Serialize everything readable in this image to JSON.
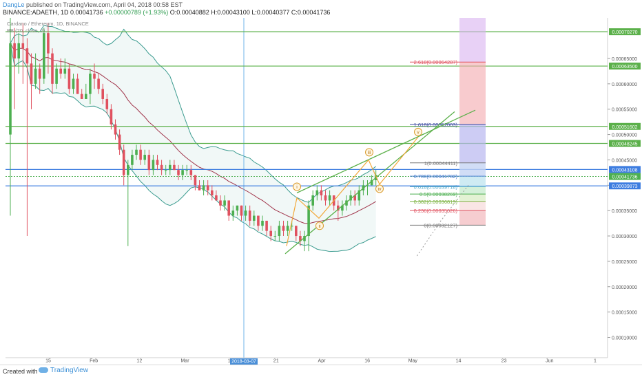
{
  "header": {
    "user": "DangLe",
    "published": "published on TradingView.com, April 04, 2018 00:58 EST",
    "symbol_line": "BINANCE:ADAETH, 1D",
    "last": "0.00041736",
    "change": "+0.00000789 (+1.93%)",
    "ohlc": "O:0.00040882 H:0.00043100 L:0.00040377 C:0.00041736",
    "legend1": "Cardano / Ethereum, 1D, BINANCE",
    "legend2": "BB (20, close, 2)"
  },
  "footer": {
    "created_with": "Created with",
    "brand": "TradingView"
  },
  "colors": {
    "up": "#4caf50",
    "down": "#e0515f",
    "bb_band": "#3a9b8f",
    "bb_basis": "#a0344a",
    "green_line": "#5bb04a",
    "blue_line": "#3d7de0"
  },
  "chart_data": {
    "type": "candlestick",
    "ylim": [
      6e-05,
      0.00073
    ],
    "y_ticks": [
      "0.00065000",
      "0.00060000",
      "0.00055000",
      "0.00050000",
      "0.00045000",
      "0.00040000",
      "0.00035000",
      "0.00030000",
      "0.00025000",
      "0.00020000",
      "0.00015000",
      "0.00010000"
    ],
    "x_ticks": [
      "15",
      "Feb",
      "12",
      "Mar",
      "12",
      "21",
      "Apr",
      "16",
      "May",
      "14",
      "23",
      "Jun",
      "1"
    ],
    "crosshair_date": "2018-03-07",
    "price_tags": [
      {
        "value": "0.00070270",
        "color": "#5bb04a",
        "y": 0.0007027
      },
      {
        "value": "0.00063500",
        "color": "#5bb04a",
        "y": 0.000635
      },
      {
        "value": "0.00051602",
        "color": "#5bb04a",
        "y": 0.00051602
      },
      {
        "value": "0.00048245",
        "color": "#5bb04a",
        "y": 0.00048245
      },
      {
        "value": "0.00043108",
        "color": "#3d7de0",
        "y": 0.00043108
      },
      {
        "value": "0.00041736",
        "color": "#4caf50",
        "y": 0.00041736
      },
      {
        "value": "0.00039873",
        "color": "#3d7de0",
        "y": 0.00039873
      }
    ],
    "fib_levels": [
      {
        "label": "2.618(0.00064287)",
        "y": 0.00064287,
        "color": "#e0515f"
      },
      {
        "label": "1.618(0.00052003)",
        "y": 0.00052003,
        "color": "#3b4aa0"
      },
      {
        "label": "1(0.00044411)",
        "y": 0.00044411,
        "color": "#777777"
      },
      {
        "label": "0.786(0.00041782)",
        "y": 0.00041782,
        "color": "#4a7fd0"
      },
      {
        "label": "0.618(0.00039718)",
        "y": 0.00039718,
        "color": "#4fa6c8"
      },
      {
        "label": "0.5(0.00038269)",
        "y": 0.00038269,
        "color": "#4caf50"
      },
      {
        "label": "0.382(0.00036819)",
        "y": 0.00036819,
        "color": "#7cb342"
      },
      {
        "label": "0.236(0.00035026)",
        "y": 0.00035026,
        "color": "#e0515f"
      },
      {
        "label": "0(0.00032127)",
        "y": 0.00032127,
        "color": "#777777"
      }
    ],
    "wave_labels": [
      "i",
      "ii",
      "iii",
      "iv",
      "v"
    ],
    "candles": [
      [
        0.0005,
        0.00073,
        0.00034,
        0.00068
      ],
      [
        0.00068,
        0.00071,
        0.00055,
        0.00065
      ],
      [
        0.00065,
        0.0007,
        0.00062,
        0.00068
      ],
      [
        0.00068,
        0.00072,
        0.0006,
        0.00067
      ],
      [
        0.00067,
        0.00069,
        0.0003,
        0.00064
      ],
      [
        0.00064,
        0.00066,
        0.00055,
        0.0006
      ],
      [
        0.0006,
        0.00066,
        0.00059,
        0.00063
      ],
      [
        0.00063,
        0.00064,
        0.00058,
        0.00061
      ],
      [
        0.00061,
        0.00071,
        0.0006,
        0.0007
      ],
      [
        0.0007,
        0.00072,
        0.00062,
        0.00066
      ],
      [
        0.00066,
        0.00067,
        0.00058,
        0.0006
      ],
      [
        0.0006,
        0.00064,
        0.00059,
        0.00063
      ],
      [
        0.00063,
        0.00065,
        0.00061,
        0.00062
      ],
      [
        0.00062,
        0.00065,
        0.00061,
        0.00063
      ],
      [
        0.00063,
        0.00064,
        0.00058,
        0.00059
      ],
      [
        0.00059,
        0.00062,
        0.00058,
        0.00061
      ],
      [
        0.00061,
        0.00062,
        0.00058,
        0.00058
      ],
      [
        0.00058,
        0.00059,
        0.00057,
        0.00057
      ],
      [
        0.00057,
        0.0006,
        0.00057,
        0.00058
      ],
      [
        0.00058,
        0.00063,
        0.00056,
        0.00062
      ],
      [
        0.00062,
        0.00064,
        0.00059,
        0.00061
      ],
      [
        0.00061,
        0.00062,
        0.00058,
        0.00059
      ],
      [
        0.00059,
        0.0006,
        0.00056,
        0.00057
      ],
      [
        0.00057,
        0.00058,
        0.00054,
        0.00055
      ],
      [
        0.00055,
        0.00056,
        0.00051,
        0.00052
      ],
      [
        0.00052,
        0.00053,
        0.00049,
        0.0005
      ],
      [
        0.0005,
        0.00051,
        0.00046,
        0.00047
      ],
      [
        0.00047,
        0.00048,
        0.0004,
        0.00042
      ],
      [
        0.00042,
        0.00045,
        0.00028,
        0.00044
      ],
      [
        0.00044,
        0.00047,
        0.00043,
        0.00046
      ],
      [
        0.00046,
        0.00048,
        0.00045,
        0.00047
      ],
      [
        0.00047,
        0.00048,
        0.00044,
        0.00045
      ],
      [
        0.00045,
        0.00047,
        0.00044,
        0.00046
      ],
      [
        0.00046,
        0.00047,
        0.00042,
        0.00043
      ],
      [
        0.00043,
        0.00046,
        0.00042,
        0.00045
      ],
      [
        0.00045,
        0.00046,
        0.00043,
        0.00044
      ],
      [
        0.00044,
        0.00045,
        0.00042,
        0.00043
      ],
      [
        0.00043,
        0.00044,
        0.00042,
        0.00043
      ],
      [
        0.00043,
        0.00045,
        0.00042,
        0.00044
      ],
      [
        0.00044,
        0.00045,
        0.00043,
        0.00043
      ],
      [
        0.00043,
        0.00044,
        0.00041,
        0.00042
      ],
      [
        0.00042,
        0.00044,
        0.00041,
        0.00043
      ],
      [
        0.00043,
        0.00044,
        0.00042,
        0.00043
      ],
      [
        0.00043,
        0.00044,
        0.00041,
        0.00042
      ],
      [
        0.00042,
        0.00042,
        0.00039,
        0.0004
      ],
      [
        0.0004,
        0.00041,
        0.00039,
        0.00039
      ],
      [
        0.00039,
        0.00041,
        0.00038,
        0.0004
      ],
      [
        0.0004,
        0.00041,
        0.00038,
        0.00039
      ],
      [
        0.00039,
        0.0004,
        0.00037,
        0.00038
      ],
      [
        0.00038,
        0.00039,
        0.00037,
        0.00037
      ],
      [
        0.00037,
        0.00038,
        0.00035,
        0.00036
      ],
      [
        0.00036,
        0.00038,
        0.00035,
        0.00037
      ],
      [
        0.00037,
        0.00037,
        0.00033,
        0.00034
      ],
      [
        0.00034,
        0.00036,
        0.00033,
        0.00035
      ],
      [
        0.00035,
        0.00036,
        0.00034,
        0.00036
      ],
      [
        0.00036,
        0.00036,
        0.00033,
        0.00034
      ],
      [
        0.00034,
        0.00036,
        0.00033,
        0.00035
      ],
      [
        0.00035,
        0.00036,
        0.00032,
        0.00033
      ],
      [
        0.00033,
        0.00035,
        0.00032,
        0.00034
      ],
      [
        0.00034,
        0.00034,
        0.00031,
        0.00032
      ],
      [
        0.00032,
        0.00034,
        0.00031,
        0.00033
      ],
      [
        0.00033,
        0.00033,
        0.0003,
        0.00031
      ],
      [
        0.00031,
        0.00032,
        0.00029,
        0.0003
      ],
      [
        0.0003,
        0.00031,
        0.00029,
        0.0003
      ],
      [
        0.0003,
        0.00033,
        0.00029,
        0.00032
      ],
      [
        0.00032,
        0.00033,
        0.0003,
        0.00031
      ],
      [
        0.00031,
        0.00033,
        0.0003,
        0.00032
      ],
      [
        0.00032,
        0.00033,
        0.00031,
        0.00032
      ],
      [
        0.00032,
        0.00032,
        0.00029,
        0.0003
      ],
      [
        0.0003,
        0.00031,
        0.00028,
        0.00029
      ],
      [
        0.00029,
        0.00031,
        0.00027,
        0.0003
      ],
      [
        0.0003,
        0.00037,
        0.00027,
        0.00036
      ],
      [
        0.00036,
        0.00039,
        0.00035,
        0.00038
      ],
      [
        0.00038,
        0.0004,
        0.00037,
        0.00039
      ],
      [
        0.00039,
        0.0004,
        0.00037,
        0.00038
      ],
      [
        0.00038,
        0.00039,
        0.00036,
        0.00037
      ],
      [
        0.00037,
        0.00039,
        0.00036,
        0.00038
      ],
      [
        0.00038,
        0.00038,
        0.00035,
        0.00036
      ],
      [
        0.00036,
        0.00037,
        0.00033,
        0.00035
      ],
      [
        0.00035,
        0.00037,
        0.00034,
        0.00036
      ],
      [
        0.00036,
        0.00038,
        0.00035,
        0.00037
      ],
      [
        0.00037,
        0.00039,
        0.00036,
        0.00038
      ],
      [
        0.00038,
        0.00039,
        0.00036,
        0.00037
      ],
      [
        0.00037,
        0.0004,
        0.00036,
        0.00039
      ],
      [
        0.00039,
        0.00041,
        0.00038,
        0.0004
      ],
      [
        0.0004,
        0.00041,
        0.00038,
        0.0004
      ],
      [
        0.0004,
        0.00042,
        0.0004,
        0.00041
      ],
      [
        0.00041,
        0.00043,
        0.0004,
        0.00042
      ]
    ]
  }
}
